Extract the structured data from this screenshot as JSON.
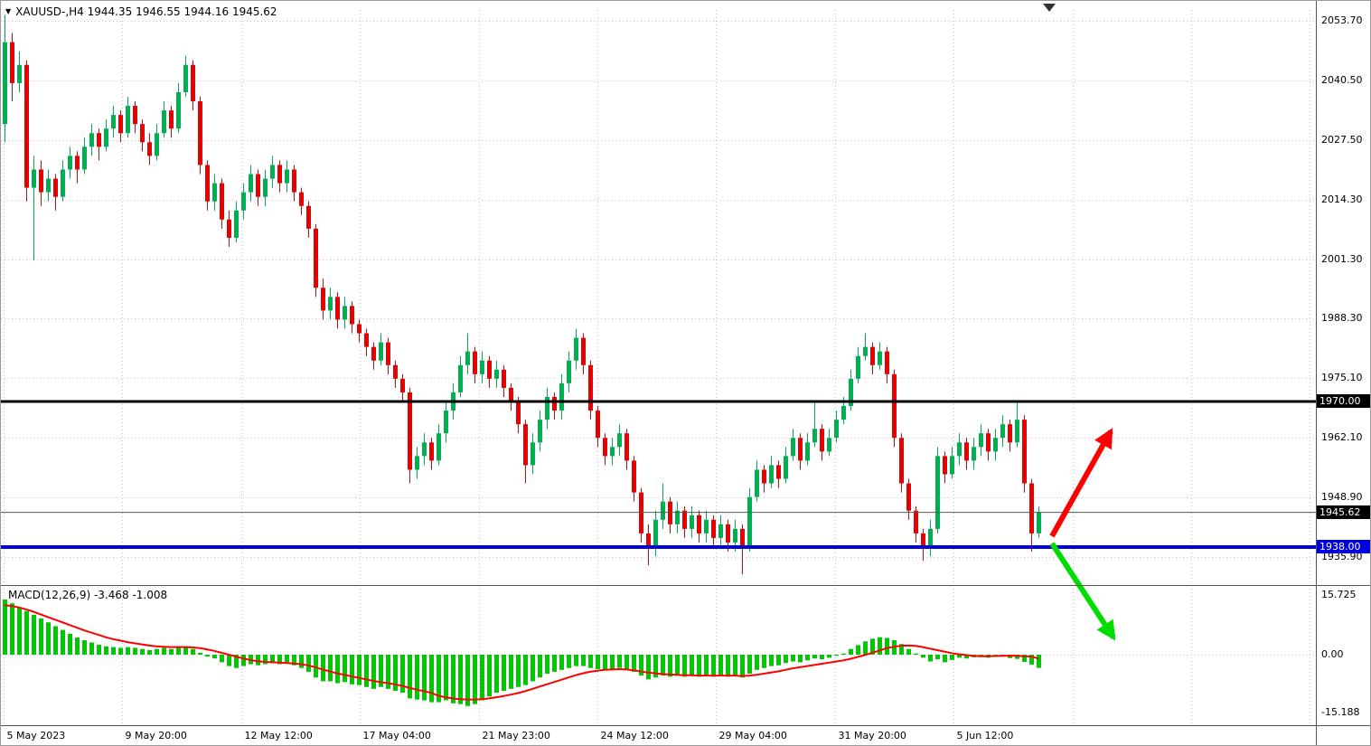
{
  "window": {
    "symbol_line": "XAUUSD-,H4 1944.35 1946.55 1944.16 1945.62",
    "collapse_icon": "down-triangle"
  },
  "indicator_label": "MACD(12,26,9) -3.468 -1.008",
  "price_axis_ticks": [
    "2053.70",
    "2040.50",
    "2027.50",
    "2014.30",
    "2001.30",
    "1988.30",
    "1975.10",
    "1962.10",
    "1948.90",
    "1935.90"
  ],
  "macd_axis_ticks": [
    "15.725",
    "0.00",
    "-15.188"
  ],
  "time_axis_labels": [
    "5 May 2023",
    "9 May 20:00",
    "12 May 12:00",
    "17 May 04:00",
    "21 May 23:00",
    "24 May 12:00",
    "29 May 04:00",
    "31 May 20:00",
    "5 Jun 12:00"
  ],
  "badges": {
    "resistance": {
      "label": "1970.00",
      "bg": "#000000"
    },
    "current": {
      "label": "1945.62",
      "bg": "#000000"
    },
    "support": {
      "label": "1938.00",
      "bg": "#0000dd"
    }
  },
  "colors": {
    "bull": "#00b050",
    "bear": "#e80000",
    "macd_hist": "#00c800",
    "macd_signal": "#ff0000",
    "grid": "#c6c6c6",
    "resistance_line": "#000000",
    "support_line": "#0000dd",
    "current_line": "#555555",
    "arrow_up": "#ff0000",
    "arrow_down": "#00dd00",
    "separator": "#555555"
  },
  "chart_data": {
    "type": "candlestick",
    "symbol": "XAUUSD-",
    "timeframe": "H4",
    "current_ohlc": {
      "open": 1944.35,
      "high": 1946.55,
      "low": 1944.16,
      "close": 1945.62
    },
    "levels": {
      "resistance": 1970.0,
      "support": 1938.0,
      "current_price": 1945.62
    },
    "y_axis_range": [
      1922.0,
      2056.0
    ],
    "candles": [
      [
        2031,
        2055,
        2027,
        2049
      ],
      [
        2049,
        2051,
        2036,
        2040
      ],
      [
        2040,
        2047,
        2038,
        2044
      ],
      [
        2044,
        2045,
        2014,
        2017
      ],
      [
        2017,
        2024,
        2001,
        2021
      ],
      [
        2021,
        2023,
        2013,
        2016
      ],
      [
        2016,
        2021,
        2014,
        2019
      ],
      [
        2019,
        2020,
        2012,
        2015
      ],
      [
        2015,
        2023,
        2014,
        2021
      ],
      [
        2021,
        2026,
        2019,
        2024
      ],
      [
        2024,
        2025,
        2018,
        2021
      ],
      [
        2021,
        2028,
        2020,
        2026
      ],
      [
        2026,
        2031,
        2024,
        2029
      ],
      [
        2029,
        2030,
        2023,
        2026
      ],
      [
        2026,
        2032,
        2025,
        2030
      ],
      [
        2030,
        2035,
        2028,
        2033
      ],
      [
        2033,
        2034,
        2027,
        2029
      ],
      [
        2029,
        2037,
        2028,
        2035
      ],
      [
        2035,
        2036,
        2029,
        2031
      ],
      [
        2031,
        2032,
        2025,
        2027
      ],
      [
        2027,
        2029,
        2022,
        2024
      ],
      [
        2024,
        2031,
        2023,
        2029
      ],
      [
        2029,
        2036,
        2028,
        2034
      ],
      [
        2034,
        2035,
        2028,
        2030
      ],
      [
        2030,
        2040,
        2029,
        2038
      ],
      [
        2038,
        2046,
        2037,
        2044
      ],
      [
        2044,
        2045,
        2034,
        2036
      ],
      [
        2036,
        2037,
        2020,
        2022
      ],
      [
        2022,
        2023,
        2012,
        2014
      ],
      [
        2014,
        2020,
        2012,
        2018
      ],
      [
        2018,
        2019,
        2008,
        2010
      ],
      [
        2010,
        2012,
        2004,
        2006
      ],
      [
        2006,
        2014,
        2005,
        2012
      ],
      [
        2012,
        2018,
        2010,
        2016
      ],
      [
        2016,
        2022,
        2014,
        2020
      ],
      [
        2020,
        2021,
        2013,
        2015
      ],
      [
        2015,
        2021,
        2013,
        2019
      ],
      [
        2019,
        2024,
        2017,
        2022
      ],
      [
        2022,
        2023,
        2016,
        2018
      ],
      [
        2018,
        2023,
        2016,
        2021
      ],
      [
        2021,
        2022,
        2014,
        2016
      ],
      [
        2016,
        2017,
        2011,
        2013
      ],
      [
        2013,
        2014,
        2006,
        2008
      ],
      [
        2008,
        2009,
        1993,
        1995
      ],
      [
        1995,
        1997,
        1988,
        1990
      ],
      [
        1990,
        1995,
        1988,
        1993
      ],
      [
        1993,
        1994,
        1986,
        1988
      ],
      [
        1988,
        1993,
        1986,
        1991
      ],
      [
        1991,
        1992,
        1985,
        1987
      ],
      [
        1987,
        1988,
        1983,
        1985
      ],
      [
        1985,
        1986,
        1980,
        1982
      ],
      [
        1982,
        1983,
        1977,
        1979
      ],
      [
        1979,
        1985,
        1978,
        1983
      ],
      [
        1983,
        1984,
        1976,
        1978
      ],
      [
        1978,
        1979,
        1973,
        1975
      ],
      [
        1975,
        1976,
        1970,
        1972
      ],
      [
        1972,
        1973,
        1952,
        1955
      ],
      [
        1955,
        1960,
        1953,
        1958
      ],
      [
        1958,
        1963,
        1956,
        1961
      ],
      [
        1961,
        1962,
        1955,
        1957
      ],
      [
        1957,
        1965,
        1956,
        1963
      ],
      [
        1963,
        1970,
        1961,
        1968
      ],
      [
        1968,
        1974,
        1966,
        1972
      ],
      [
        1972,
        1980,
        1971,
        1978
      ],
      [
        1978,
        1985,
        1976,
        1981
      ],
      [
        1981,
        1982,
        1974,
        1976
      ],
      [
        1976,
        1981,
        1974,
        1979
      ],
      [
        1979,
        1980,
        1973,
        1975
      ],
      [
        1975,
        1979,
        1973,
        1977
      ],
      [
        1977,
        1978,
        1971,
        1973
      ],
      [
        1973,
        1974,
        1968,
        1970
      ],
      [
        1970,
        1971,
        1963,
        1965
      ],
      [
        1965,
        1966,
        1952,
        1956
      ],
      [
        1956,
        1963,
        1954,
        1961
      ],
      [
        1961,
        1968,
        1959,
        1966
      ],
      [
        1966,
        1973,
        1964,
        1971
      ],
      [
        1971,
        1972,
        1966,
        1968
      ],
      [
        1968,
        1976,
        1966,
        1974
      ],
      [
        1974,
        1981,
        1972,
        1979
      ],
      [
        1979,
        1986,
        1977,
        1984
      ],
      [
        1984,
        1985,
        1976,
        1978
      ],
      [
        1978,
        1979,
        1966,
        1968
      ],
      [
        1968,
        1969,
        1960,
        1962
      ],
      [
        1962,
        1963,
        1956,
        1958
      ],
      [
        1958,
        1962,
        1956,
        1960
      ],
      [
        1960,
        1965,
        1958,
        1963
      ],
      [
        1963,
        1964,
        1955,
        1957
      ],
      [
        1957,
        1958,
        1948,
        1950
      ],
      [
        1950,
        1951,
        1939,
        1941
      ],
      [
        1941,
        1943,
        1934,
        1938
      ],
      [
        1938,
        1946,
        1936,
        1944
      ],
      [
        1944,
        1952,
        1942,
        1948
      ],
      [
        1948,
        1949,
        1941,
        1943
      ],
      [
        1943,
        1948,
        1941,
        1946
      ],
      [
        1946,
        1947,
        1940,
        1942
      ],
      [
        1942,
        1947,
        1940,
        1945
      ],
      [
        1945,
        1946,
        1939,
        1941
      ],
      [
        1941,
        1946,
        1939,
        1944
      ],
      [
        1944,
        1945,
        1938,
        1940
      ],
      [
        1940,
        1945,
        1938,
        1943
      ],
      [
        1943,
        1944,
        1937,
        1939
      ],
      [
        1939,
        1944,
        1937,
        1942
      ],
      [
        1942,
        1943,
        1932,
        1938
      ],
      [
        1938,
        1951,
        1937,
        1949
      ],
      [
        1949,
        1957,
        1948,
        1955
      ],
      [
        1955,
        1956,
        1950,
        1952
      ],
      [
        1952,
        1958,
        1951,
        1956
      ],
      [
        1956,
        1957,
        1951,
        1953
      ],
      [
        1953,
        1960,
        1952,
        1958
      ],
      [
        1958,
        1964,
        1957,
        1962
      ],
      [
        1962,
        1963,
        1955,
        1957
      ],
      [
        1957,
        1963,
        1956,
        1961
      ],
      [
        1961,
        1970,
        1960,
        1964
      ],
      [
        1964,
        1965,
        1957,
        1959
      ],
      [
        1959,
        1964,
        1958,
        1962
      ],
      [
        1962,
        1968,
        1961,
        1966
      ],
      [
        1966,
        1971,
        1965,
        1969
      ],
      [
        1969,
        1977,
        1968,
        1975
      ],
      [
        1975,
        1982,
        1974,
        1980
      ],
      [
        1980,
        1985,
        1979,
        1982
      ],
      [
        1982,
        1983,
        1976,
        1978
      ],
      [
        1978,
        1983,
        1977,
        1981
      ],
      [
        1981,
        1982,
        1974,
        1976
      ],
      [
        1976,
        1977,
        1960,
        1962
      ],
      [
        1962,
        1963,
        1950,
        1952
      ],
      [
        1952,
        1953,
        1944,
        1946
      ],
      [
        1946,
        1947,
        1939,
        1941
      ],
      [
        1941,
        1942,
        1935,
        1938
      ],
      [
        1938,
        1944,
        1936,
        1942
      ],
      [
        1942,
        1960,
        1941,
        1958
      ],
      [
        1958,
        1959,
        1952,
        1954
      ],
      [
        1954,
        1960,
        1953,
        1958
      ],
      [
        1958,
        1963,
        1956,
        1961
      ],
      [
        1961,
        1962,
        1955,
        1957
      ],
      [
        1957,
        1962,
        1955,
        1960
      ],
      [
        1960,
        1965,
        1958,
        1963
      ],
      [
        1963,
        1964,
        1957,
        1959
      ],
      [
        1959,
        1964,
        1957,
        1962
      ],
      [
        1962,
        1967,
        1960,
        1965
      ],
      [
        1965,
        1966,
        1959,
        1961
      ],
      [
        1961,
        1970,
        1960,
        1966
      ],
      [
        1966,
        1967,
        1950,
        1952
      ],
      [
        1952,
        1953,
        1937,
        1941
      ],
      [
        1941,
        1947,
        1940,
        1945.62
      ]
    ],
    "macd": {
      "name": "MACD",
      "params": [
        12,
        26,
        9
      ],
      "macd_value": -3.468,
      "signal_value": -1.008,
      "range": [
        -15.188,
        15.725
      ],
      "histogram": [
        14.5,
        13.5,
        12.5,
        11.5,
        10.5,
        9.5,
        8.5,
        7.5,
        6.5,
        5.5,
        4.5,
        3.8,
        3.2,
        2.6,
        2.2,
        2.0,
        1.8,
        2.0,
        1.8,
        1.5,
        1.2,
        1.5,
        1.8,
        1.5,
        2.0,
        2.2,
        1.5,
        0.5,
        -0.5,
        -1.0,
        -2.0,
        -3.0,
        -3.5,
        -3.0,
        -2.5,
        -2.8,
        -2.5,
        -2.2,
        -2.5,
        -2.2,
        -2.8,
        -3.5,
        -4.5,
        -6.0,
        -7.0,
        -7.0,
        -7.5,
        -7.2,
        -7.8,
        -8.0,
        -8.5,
        -9.0,
        -8.5,
        -9.0,
        -9.5,
        -10.0,
        -11.5,
        -11.8,
        -12.0,
        -12.5,
        -12.5,
        -12.0,
        -12.8,
        -13.0,
        -13.5,
        -13.0,
        -12.0,
        -11.0,
        -10.0,
        -9.5,
        -9.0,
        -8.5,
        -8.0,
        -7.0,
        -6.0,
        -5.0,
        -4.5,
        -4.0,
        -3.5,
        -3.0,
        -3.0,
        -3.5,
        -3.8,
        -4.0,
        -3.8,
        -3.5,
        -3.8,
        -4.5,
        -5.5,
        -6.5,
        -6.0,
        -5.5,
        -5.8,
        -5.5,
        -5.8,
        -5.5,
        -5.8,
        -5.5,
        -5.8,
        -5.5,
        -5.8,
        -5.5,
        -6.0,
        -5.0,
        -4.0,
        -3.5,
        -3.0,
        -2.8,
        -2.2,
        -1.8,
        -2.0,
        -1.5,
        -1.0,
        -1.2,
        -0.8,
        -0.3,
        0.3,
        1.5,
        2.5,
        3.5,
        4.2,
        4.6,
        4.4,
        3.8,
        2.8,
        1.5,
        0.3,
        -0.8,
        -1.8,
        -1.2,
        -2.0,
        -1.4,
        -0.8,
        -1.0,
        -0.7,
        -0.5,
        -0.8,
        -0.6,
        -0.4,
        -0.9,
        -1.1,
        -1.9,
        -2.6,
        -3.468
      ],
      "signal": [
        13.0,
        12.8,
        12.4,
        11.9,
        11.3,
        10.6,
        9.9,
        9.2,
        8.5,
        7.8,
        7.1,
        6.4,
        5.8,
        5.2,
        4.6,
        4.1,
        3.7,
        3.3,
        3.0,
        2.7,
        2.4,
        2.2,
        2.1,
        2.0,
        2.0,
        2.0,
        1.9,
        1.7,
        1.4,
        1.0,
        0.5,
        0.0,
        -0.5,
        -1.0,
        -1.4,
        -1.7,
        -1.9,
        -2.0,
        -2.1,
        -2.2,
        -2.3,
        -2.5,
        -2.8,
        -3.3,
        -3.9,
        -4.4,
        -4.9,
        -5.3,
        -5.7,
        -6.1,
        -6.5,
        -6.9,
        -7.2,
        -7.5,
        -7.8,
        -8.2,
        -8.7,
        -9.2,
        -9.6,
        -10.0,
        -10.8,
        -11.2,
        -11.5,
        -11.7,
        -11.8,
        -11.8,
        -11.7,
        -11.5,
        -11.2,
        -10.9,
        -10.5,
        -10.1,
        -9.6,
        -9.0,
        -8.4,
        -7.8,
        -7.2,
        -6.6,
        -6.0,
        -5.4,
        -4.9,
        -4.5,
        -4.2,
        -4.0,
        -3.9,
        -3.8,
        -3.9,
        -4.1,
        -4.4,
        -4.7,
        -4.9,
        -5.1,
        -5.2,
        -5.3,
        -5.4,
        -5.4,
        -5.5,
        -5.5,
        -5.5,
        -5.5,
        -5.5,
        -5.5,
        -5.6,
        -5.5,
        -5.3,
        -5.0,
        -4.7,
        -4.4,
        -4.0,
        -3.6,
        -3.3,
        -3.0,
        -2.7,
        -2.4,
        -2.1,
        -1.8,
        -1.5,
        -1.1,
        -0.6,
        -0.1,
        0.5,
        1.1,
        1.7,
        2.1,
        2.35,
        2.4,
        2.3,
        2.0,
        1.6,
        1.2,
        0.8,
        0.4,
        0.1,
        -0.1,
        -0.3,
        -0.4,
        -0.4,
        -0.35,
        -0.3,
        -0.25,
        -0.3,
        -0.4,
        -0.5,
        -1.008
      ]
    },
    "annotations": [
      {
        "type": "arrow",
        "direction": "up",
        "color": "#ff0000",
        "from": [
          1163,
          592
        ],
        "to": [
          1228,
          476
        ]
      },
      {
        "type": "arrow",
        "direction": "down",
        "color": "#00dd00",
        "from": [
          1163,
          600
        ],
        "to": [
          1231,
          704
        ]
      }
    ]
  }
}
